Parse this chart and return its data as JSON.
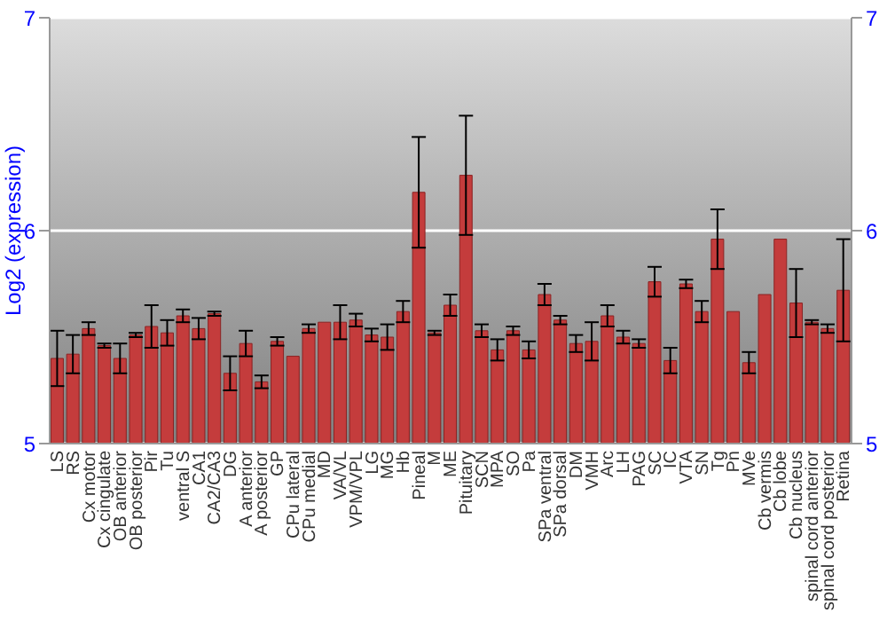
{
  "chart_data": {
    "type": "bar",
    "ylabel": "Log2 (expression)",
    "categories": [
      "LS",
      "RS",
      "Cx motor",
      "Cx cingulate",
      "OB anterior",
      "OB posterior",
      "Pir",
      "Tu",
      "ventral S",
      "CA1",
      "CA2/CA3",
      "DG",
      "A anterior",
      "A posterior",
      "GP",
      "CPu lateral",
      "CPu medial",
      "MD",
      "VA/VL",
      "VPM/VPL",
      "LG",
      "MG",
      "Hb",
      "Pineal",
      "M",
      "ME",
      "Pituitary",
      "SCN",
      "MPA",
      "SO",
      "Pa",
      "SPa ventral",
      "SPa dorsal",
      "DM",
      "VMH",
      "Arc",
      "LH",
      "PAG",
      "SC",
      "IC",
      "VTA",
      "SN",
      "Tg",
      "Pn",
      "MVe",
      "Cb vermis",
      "Cb lobe",
      "Cb nucleus",
      "spinal cord anterior",
      "spinal cord posterior",
      "Retina"
    ],
    "values": [
      5.4,
      5.42,
      5.54,
      5.46,
      5.4,
      5.51,
      5.55,
      5.52,
      5.6,
      5.54,
      5.61,
      5.33,
      5.47,
      5.29,
      5.48,
      5.41,
      5.54,
      5.57,
      5.57,
      5.58,
      5.51,
      5.5,
      5.62,
      6.18,
      5.52,
      5.65,
      6.26,
      5.53,
      5.44,
      5.53,
      5.44,
      5.7,
      5.58,
      5.47,
      5.48,
      5.6,
      5.5,
      5.47,
      5.76,
      5.39,
      5.75,
      5.62,
      5.96,
      5.62,
      5.38,
      5.7,
      5.96,
      5.66,
      5.57,
      5.54,
      5.72
    ],
    "errors": [
      0.13,
      0.09,
      0.03,
      0.01,
      0.07,
      0.01,
      0.1,
      0.06,
      0.03,
      0.05,
      0.01,
      0.08,
      0.06,
      0.03,
      0.02,
      null,
      0.02,
      null,
      0.08,
      0.03,
      0.03,
      0.06,
      0.05,
      0.26,
      0.01,
      0.05,
      0.28,
      0.03,
      0.05,
      0.02,
      0.04,
      0.05,
      0.02,
      0.04,
      0.09,
      0.05,
      0.03,
      0.02,
      0.07,
      0.06,
      0.02,
      0.05,
      0.14,
      null,
      0.05,
      null,
      null,
      0.16,
      0.01,
      0.02,
      0.24
    ],
    "color": "#c43c3c",
    "ylim": [
      5,
      7
    ],
    "yticks": [
      5,
      6,
      7
    ],
    "y2lim": [
      5,
      7
    ],
    "y2ticks": [
      5,
      6,
      7
    ],
    "grid": "y"
  }
}
